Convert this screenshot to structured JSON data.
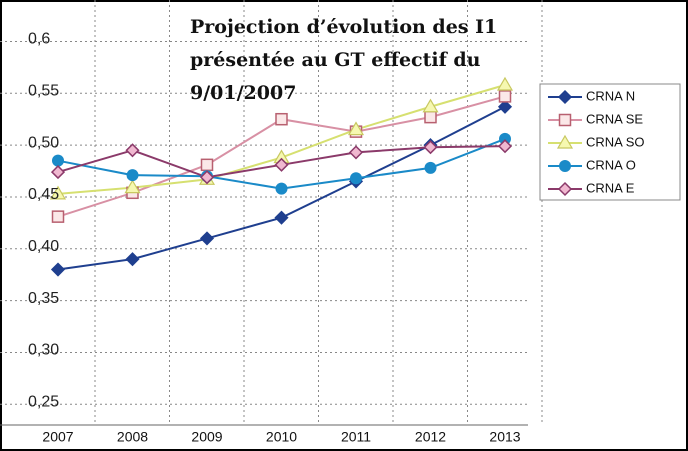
{
  "chart_data": {
    "type": "line",
    "title": [
      "Projection d’évolution des I1",
      "présentée au GT effectif du",
      "9/01/2007"
    ],
    "categories": [
      "2007",
      "2008",
      "2009",
      "2010",
      "2011",
      "2012",
      "2013"
    ],
    "ylim": [
      0.23,
      0.64
    ],
    "yticks": [
      {
        "value": 0.25,
        "label": "0,25"
      },
      {
        "value": 0.3,
        "label": "0,30"
      },
      {
        "value": 0.35,
        "label": "0,35"
      },
      {
        "value": 0.4,
        "label": "0,40"
      },
      {
        "value": 0.45,
        "label": "0,45"
      },
      {
        "value": 0.5,
        "label": "0,50"
      },
      {
        "value": 0.55,
        "label": "0,55"
      },
      {
        "value": 0.6,
        "label": "0,6"
      }
    ],
    "grid": true,
    "legend": "right",
    "series": [
      {
        "name": "CRNA N",
        "color": "#1f3f8f",
        "marker": "diamond",
        "values": [
          0.38,
          0.39,
          0.41,
          0.43,
          0.465,
          0.5,
          0.537
        ]
      },
      {
        "name": "CRNA SE",
        "color": "#d890a4",
        "marker": "square",
        "values": [
          0.431,
          0.454,
          0.481,
          0.525,
          0.513,
          0.527,
          0.547
        ]
      },
      {
        "name": "CRNA SO",
        "color": "#d6e070",
        "marker": "triangle",
        "values": [
          0.453,
          0.459,
          0.467,
          0.488,
          0.515,
          0.537,
          0.558
        ]
      },
      {
        "name": "CRNA O",
        "color": "#1a8ac8",
        "marker": "circle",
        "values": [
          0.485,
          0.471,
          0.47,
          0.458,
          0.468,
          0.478,
          0.506
        ]
      },
      {
        "name": "CRNA E",
        "color": "#8b3a6a",
        "marker": "open-diamond",
        "values": [
          0.474,
          0.495,
          0.469,
          0.481,
          0.493,
          0.498,
          0.499
        ]
      }
    ]
  }
}
